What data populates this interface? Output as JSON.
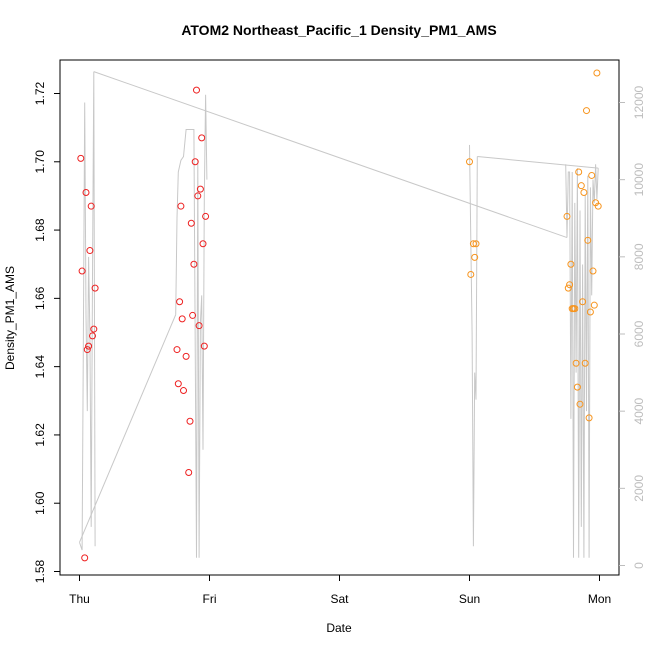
{
  "chart_data": {
    "type": "scatter",
    "title": "ATOM2 Northeast_Pacific_1 Density_PM1_AMS",
    "xlabel": "Date",
    "ylabel": "Density_PM1_AMS",
    "x_ticks": [
      "Thu",
      "Fri",
      "Sat",
      "Sun",
      "Mon"
    ],
    "x_range": [
      0,
      4
    ],
    "ylim": [
      1.58,
      1.72
    ],
    "y_ticks": [
      "1.58",
      "1.60",
      "1.62",
      "1.64",
      "1.66",
      "1.68",
      "1.70",
      "1.72"
    ],
    "y_right_range": [
      0,
      12000
    ],
    "y_right_ticks": [
      "0",
      "2000",
      "4000",
      "6000",
      "8000",
      "10000",
      "12000"
    ],
    "colors": {
      "red": "#ee2020",
      "orange": "#f7941d",
      "line": "#c8c8c8"
    },
    "series": [
      {
        "color": "red",
        "points": [
          [
            0.01,
            1.701
          ],
          [
            0.02,
            1.668
          ],
          [
            0.04,
            1.584
          ],
          [
            0.05,
            1.691
          ],
          [
            0.06,
            1.645
          ],
          [
            0.07,
            1.646
          ],
          [
            0.08,
            1.674
          ],
          [
            0.09,
            1.687
          ],
          [
            0.1,
            1.649
          ],
          [
            0.11,
            1.651
          ],
          [
            0.12,
            1.663
          ],
          [
            0.75,
            1.645
          ],
          [
            0.76,
            1.635
          ],
          [
            0.77,
            1.659
          ],
          [
            0.78,
            1.687
          ],
          [
            0.79,
            1.654
          ],
          [
            0.8,
            1.633
          ],
          [
            0.82,
            1.643
          ],
          [
            0.84,
            1.609
          ],
          [
            0.85,
            1.624
          ],
          [
            0.86,
            1.682
          ],
          [
            0.87,
            1.655
          ],
          [
            0.88,
            1.67
          ],
          [
            0.89,
            1.7
          ],
          [
            0.9,
            1.721
          ],
          [
            0.91,
            1.69
          ],
          [
            0.92,
            1.652
          ],
          [
            0.93,
            1.692
          ],
          [
            0.94,
            1.707
          ],
          [
            0.95,
            1.676
          ],
          [
            0.96,
            1.646
          ],
          [
            0.97,
            1.684
          ]
        ]
      },
      {
        "color": "orange",
        "points": [
          [
            3.0,
            1.7
          ],
          [
            3.01,
            1.667
          ],
          [
            3.03,
            1.676
          ],
          [
            3.04,
            1.672
          ],
          [
            3.05,
            1.676
          ],
          [
            3.75,
            1.684
          ],
          [
            3.76,
            1.663
          ],
          [
            3.77,
            1.664
          ],
          [
            3.78,
            1.67
          ],
          [
            3.79,
            1.657
          ],
          [
            3.8,
            1.657
          ],
          [
            3.81,
            1.657
          ],
          [
            3.82,
            1.641
          ],
          [
            3.83,
            1.634
          ],
          [
            3.84,
            1.697
          ],
          [
            3.85,
            1.629
          ],
          [
            3.86,
            1.693
          ],
          [
            3.87,
            1.659
          ],
          [
            3.88,
            1.691
          ],
          [
            3.89,
            1.641
          ],
          [
            3.9,
            1.715
          ],
          [
            3.91,
            1.677
          ],
          [
            3.92,
            1.625
          ],
          [
            3.93,
            1.656
          ],
          [
            3.94,
            1.696
          ],
          [
            3.95,
            1.668
          ],
          [
            3.96,
            1.658
          ],
          [
            3.97,
            1.688
          ],
          [
            3.98,
            1.726
          ],
          [
            3.99,
            1.687
          ]
        ]
      }
    ],
    "line_series": {
      "axis": "right",
      "points": [
        [
          0.0,
          600
        ],
        [
          0.02,
          400
        ],
        [
          0.03,
          6000
        ],
        [
          0.04,
          12000
        ],
        [
          0.05,
          6500
        ],
        [
          0.06,
          4000
        ],
        [
          0.07,
          8000
        ],
        [
          0.08,
          6000
        ],
        [
          0.09,
          1000
        ],
        [
          0.1,
          7500
        ],
        [
          0.11,
          12800
        ],
        [
          0.12,
          500
        ],
        [
          0.74,
          6500
        ],
        [
          0.75,
          9000
        ],
        [
          0.76,
          10200
        ],
        [
          0.78,
          10500
        ],
        [
          0.8,
          10600
        ],
        [
          0.82,
          11300
        ],
        [
          0.84,
          11300
        ],
        [
          0.86,
          11300
        ],
        [
          0.88,
          11300
        ],
        [
          0.9,
          200
        ],
        [
          0.91,
          10500
        ],
        [
          0.92,
          200
        ],
        [
          0.93,
          6300
        ],
        [
          0.94,
          7000
        ],
        [
          0.95,
          3000
        ],
        [
          0.96,
          9500
        ],
        [
          0.97,
          12200
        ],
        [
          0.98,
          10000
        ],
        [
          3.0,
          10900
        ],
        [
          3.02,
          6000
        ],
        [
          3.03,
          500
        ],
        [
          3.04,
          5000
        ],
        [
          3.05,
          4300
        ],
        [
          3.06,
          10600
        ],
        [
          3.74,
          10400
        ],
        [
          3.75,
          8500
        ],
        [
          3.76,
          10200
        ],
        [
          3.77,
          10200
        ],
        [
          3.78,
          3800
        ],
        [
          3.79,
          10200
        ],
        [
          3.8,
          200
        ],
        [
          3.81,
          9400
        ],
        [
          3.82,
          5000
        ],
        [
          3.83,
          10300
        ],
        [
          3.84,
          200
        ],
        [
          3.85,
          9200
        ],
        [
          3.86,
          1000
        ],
        [
          3.87,
          7800
        ],
        [
          3.88,
          200
        ],
        [
          3.89,
          9600
        ],
        [
          3.9,
          4000
        ],
        [
          3.91,
          10100
        ],
        [
          3.92,
          200
        ],
        [
          3.93,
          9800
        ],
        [
          3.94,
          7000
        ],
        [
          3.95,
          10000
        ],
        [
          3.96,
          9400
        ],
        [
          3.97,
          10400
        ],
        [
          3.98,
          9500
        ],
        [
          3.99,
          10300
        ]
      ],
      "connectors": [
        [
          [
            0.0,
            600
          ],
          [
            0.74,
            6500
          ]
        ],
        [
          [
            0.11,
            12800
          ],
          [
            3.75,
            8500
          ]
        ],
        [
          [
            3.06,
            10600
          ],
          [
            3.99,
            10300
          ]
        ]
      ]
    }
  }
}
